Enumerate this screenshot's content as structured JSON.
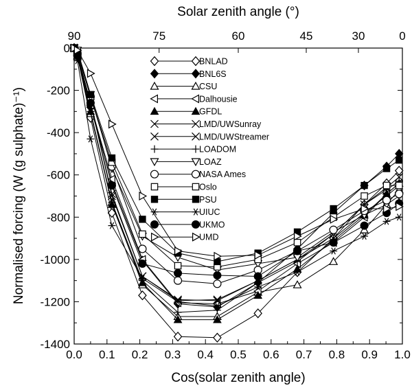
{
  "chart_data": {
    "type": "line",
    "title": "",
    "xlabel": "Cos(solar zenith angle)",
    "ylabel": "Normalised forcing (W (g sulphate)⁻¹)",
    "x2label": "Solar zenith angle (°)",
    "xlim": [
      0.0,
      1.0
    ],
    "ylim": [
      -1400,
      0
    ],
    "xticks": [
      "0.0",
      "0.1",
      "0.2",
      "0.3",
      "0.4",
      "0.5",
      "0.6",
      "0.7",
      "0.8",
      "0.9",
      "1.0"
    ],
    "yticks": [
      "0",
      "-200",
      "-400",
      "-600",
      "-800",
      "-1000",
      "-1200",
      "-1400"
    ],
    "x2ticks": [
      "90",
      "75",
      "60",
      "45",
      "30",
      "0"
    ],
    "legend_position": "top-center",
    "x": [
      0.0,
      0.01,
      0.05,
      0.115,
      0.208,
      0.316,
      0.436,
      0.56,
      0.68,
      0.79,
      0.884,
      0.952,
      0.99
    ],
    "series": [
      {
        "name": "BNLAD",
        "marker": "diamond-open",
        "values": [
          0,
          -40,
          -330,
          -780,
          -1170,
          -1365,
          -1370,
          -1255,
          -1060,
          -900,
          -740,
          -640,
          -580
        ]
      },
      {
        "name": "BNL6S",
        "marker": "diamond-filled",
        "values": [
          0,
          -30,
          -280,
          -640,
          -1005,
          -1210,
          -1225,
          -1110,
          -950,
          -780,
          -650,
          -560,
          -500
        ]
      },
      {
        "name": "CSU",
        "marker": "triangle-up-open",
        "values": [
          0,
          -40,
          -310,
          -730,
          -1120,
          -1270,
          -1270,
          -1155,
          -1120,
          -1010,
          -860,
          -740,
          -670
        ]
      },
      {
        "name": "Dalhousie",
        "marker": "triangle-left-open",
        "values": [
          0,
          -35,
          -270,
          -620,
          -1000,
          -1205,
          -1210,
          -1150,
          -1020,
          -920,
          -800,
          -690,
          -640
        ]
      },
      {
        "name": "GFDL",
        "marker": "triangle-up-filled",
        "values": [
          0,
          -35,
          -300,
          -740,
          -1110,
          -1285,
          -1285,
          -1170,
          -1045,
          -910,
          -790,
          -690,
          -640
        ]
      },
      {
        "name": "LMD/UWSunray",
        "marker": "cross",
        "values": [
          0,
          -30,
          -260,
          -700,
          -1080,
          -1195,
          -1190,
          -1100,
          -1000,
          -900,
          -780,
          -700,
          -650
        ]
      },
      {
        "name": "LMD/UWStreamer",
        "marker": "cross",
        "values": [
          0,
          -30,
          -260,
          -690,
          -1080,
          -1190,
          -1195,
          -1100,
          -1000,
          -880,
          -740,
          -660,
          -610
        ]
      },
      {
        "name": "LOADOM",
        "marker": "plus",
        "values": [
          0,
          -40,
          -300,
          -730,
          -1100,
          -1250,
          -1240,
          -1110,
          -1010,
          -880,
          -740,
          -670,
          -630
        ]
      },
      {
        "name": "LOAZ",
        "marker": "triangle-down-open",
        "values": [
          0,
          -10,
          -220,
          -570,
          -890,
          -990,
          -1050,
          -1020,
          -990,
          -870,
          -790,
          -740,
          -700
        ]
      },
      {
        "name": "NASA Ames",
        "marker": "circle-open",
        "values": [
          0,
          -25,
          -230,
          -560,
          -950,
          -1100,
          -1115,
          -1050,
          -960,
          -860,
          -770,
          -720,
          -690
        ]
      },
      {
        "name": "Oslo",
        "marker": "square-open",
        "values": [
          0,
          -20,
          -230,
          -540,
          -880,
          -1030,
          -1035,
          -1000,
          -920,
          -800,
          -700,
          -650,
          -650
        ]
      },
      {
        "name": "PSU",
        "marker": "square-filled",
        "values": [
          0,
          -25,
          -220,
          -520,
          -810,
          -970,
          -1010,
          -970,
          -870,
          -760,
          -650,
          -570,
          -530
        ]
      },
      {
        "name": "UIUC",
        "marker": "asterisk",
        "values": [
          0,
          -60,
          -430,
          -840,
          -1090,
          -1200,
          -1220,
          -1130,
          -1060,
          -960,
          -890,
          -820,
          -800
        ]
      },
      {
        "name": "UKMO",
        "marker": "circle-filled",
        "values": [
          0,
          -35,
          -260,
          -650,
          -1020,
          -1065,
          -1075,
          -1080,
          -960,
          -920,
          -840,
          -780,
          -735
        ]
      },
      {
        "name": "UMD",
        "marker": "triangle-right-open",
        "values": [
          0,
          -10,
          -120,
          -360,
          -700,
          -960,
          -985,
          -980,
          -890,
          -810,
          -760,
          -760,
          -750
        ]
      }
    ]
  }
}
